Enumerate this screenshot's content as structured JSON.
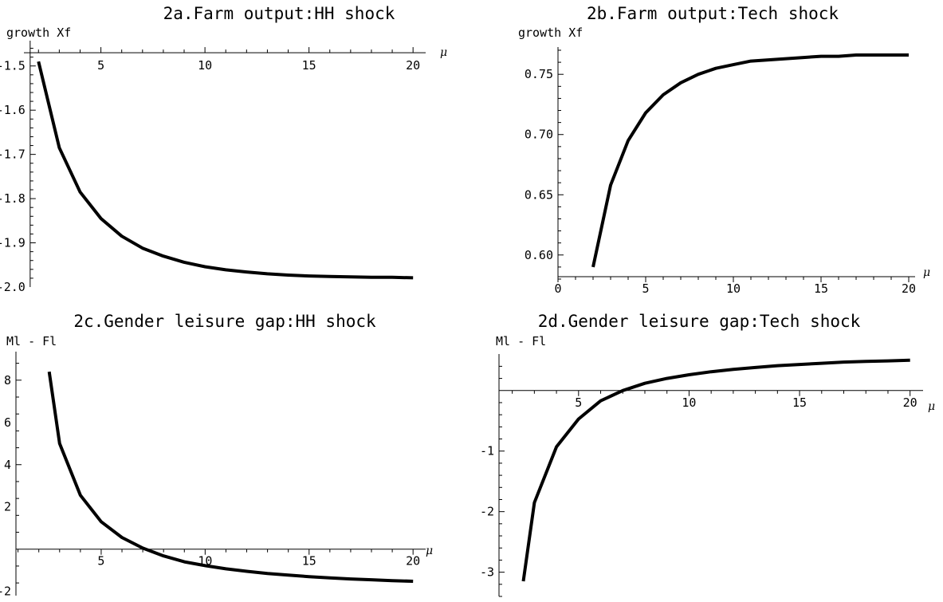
{
  "chart_data": [
    {
      "id": "2a",
      "type": "line",
      "title": "2a.Farm output:HH shock",
      "ylabel": "growth Xf",
      "xlabel": "μ",
      "xlim": [
        1.3,
        20.3
      ],
      "ylim": [
        -2.0,
        -1.45
      ],
      "x_axis_at": -1.47,
      "y_axis_at": 1.6,
      "x_ticks": [
        5,
        10,
        15,
        20
      ],
      "x_tick_labels": [
        "5",
        "10",
        "15",
        "20"
      ],
      "y_ticks": [
        -1.5,
        -1.6,
        -1.7,
        -1.8,
        -1.9,
        -2.0
      ],
      "y_tick_labels": [
        "-1.5",
        "-1.6",
        "-1.7",
        "-1.8",
        "-1.9",
        "-2.0"
      ],
      "x": [
        2,
        3,
        4,
        5,
        6,
        7,
        8,
        9,
        10,
        11,
        12,
        13,
        14,
        15,
        16,
        17,
        18,
        19,
        20
      ],
      "y": [
        -1.49,
        -1.685,
        -1.785,
        -1.845,
        -1.885,
        -1.912,
        -1.93,
        -1.944,
        -1.954,
        -1.961,
        -1.966,
        -1.97,
        -1.973,
        -1.975,
        -1.976,
        -1.977,
        -1.978,
        -1.978,
        -1.979
      ]
    },
    {
      "id": "2b",
      "type": "line",
      "title": "2b.Farm output:Tech shock",
      "ylabel": "growth Xf",
      "xlabel": "μ",
      "xlim": [
        0,
        20
      ],
      "ylim": [
        0.58,
        0.77
      ],
      "x_axis_at": 0.582,
      "y_axis_at": 0,
      "x_ticks": [
        0,
        5,
        10,
        15,
        20
      ],
      "x_tick_labels": [
        "0",
        "5",
        "10",
        "15",
        "20"
      ],
      "y_ticks": [
        0.6,
        0.65,
        0.7,
        0.75
      ],
      "y_tick_labels": [
        "0.60",
        "0.65",
        "0.70",
        "0.75"
      ],
      "x": [
        2,
        3,
        4,
        5,
        6,
        7,
        8,
        9,
        10,
        11,
        12,
        13,
        14,
        15,
        16,
        17,
        18,
        19,
        20
      ],
      "y": [
        0.59,
        0.658,
        0.695,
        0.718,
        0.733,
        0.743,
        0.75,
        0.755,
        0.758,
        0.761,
        0.762,
        0.763,
        0.764,
        0.765,
        0.765,
        0.766,
        0.766,
        0.766,
        0.766
      ]
    },
    {
      "id": "2c",
      "type": "line",
      "title": "2c.Gender leisure gap:HH shock",
      "ylabel": "Ml - Fl",
      "xlabel": "μ",
      "xlim": [
        0.9,
        20.3
      ],
      "ylim": [
        -2.2,
        9.2
      ],
      "x_axis_at": 0,
      "y_axis_at": 0.9,
      "x_ticks": [
        5,
        10,
        15,
        20
      ],
      "x_tick_labels": [
        "5",
        "10",
        "15",
        "20"
      ],
      "y_ticks": [
        8,
        6,
        4,
        2,
        -2
      ],
      "y_tick_labels": [
        "8",
        "6",
        "4",
        "2",
        "-2"
      ],
      "x": [
        2.5,
        3,
        4,
        5,
        6,
        7,
        8,
        9,
        10,
        11,
        12,
        13,
        14,
        15,
        16,
        17,
        18,
        19,
        20
      ],
      "y": [
        8.4,
        5.0,
        2.55,
        1.3,
        0.55,
        0.05,
        -0.32,
        -0.6,
        -0.78,
        -0.93,
        -1.05,
        -1.15,
        -1.23,
        -1.3,
        -1.36,
        -1.41,
        -1.45,
        -1.49,
        -1.52
      ]
    },
    {
      "id": "2d",
      "type": "line",
      "title": "2d.Gender leisure gap:Tech shock",
      "ylabel": "Ml - Fl",
      "xlabel": "μ",
      "xlim": [
        1.4,
        20.3
      ],
      "ylim": [
        -3.4,
        0.55
      ],
      "x_axis_at": 0,
      "y_axis_at": 1.4,
      "x_ticks": [
        5,
        10,
        15,
        20
      ],
      "x_tick_labels": [
        "5",
        "10",
        "15",
        "20"
      ],
      "y_ticks": [
        -1,
        -2,
        -3
      ],
      "y_tick_labels": [
        "-1",
        "-2",
        "-3"
      ],
      "x": [
        2.5,
        3,
        4,
        5,
        6,
        7,
        8,
        9,
        10,
        11,
        12,
        13,
        14,
        15,
        16,
        17,
        18,
        19,
        20
      ],
      "y": [
        -3.15,
        -1.85,
        -0.93,
        -0.47,
        -0.17,
        0.0,
        0.12,
        0.2,
        0.26,
        0.31,
        0.35,
        0.38,
        0.41,
        0.43,
        0.45,
        0.47,
        0.48,
        0.49,
        0.5
      ]
    }
  ]
}
